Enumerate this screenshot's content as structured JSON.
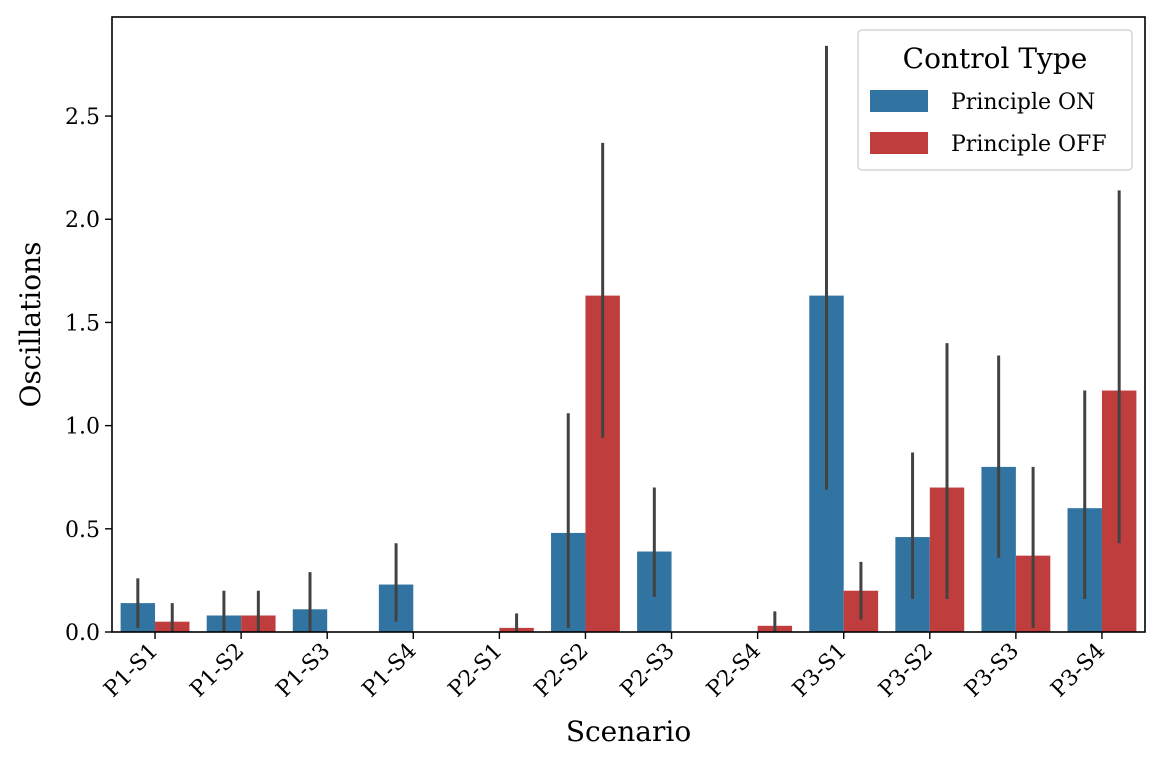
{
  "chart_data": {
    "type": "bar",
    "title": "",
    "xlabel": "Scenario",
    "ylabel": "Oscillations",
    "ylim": [
      0,
      2.98
    ],
    "yticks": [
      0.0,
      0.5,
      1.0,
      1.5,
      2.0,
      2.5
    ],
    "ytick_labels": [
      "0.0",
      "0.5",
      "1.0",
      "1.5",
      "2.0",
      "2.5"
    ],
    "categories": [
      "P1-S1",
      "P1-S2",
      "P1-S3",
      "P1-S4",
      "P2-S1",
      "P2-S2",
      "P2-S3",
      "P2-S4",
      "P3-S1",
      "P3-S2",
      "P3-S3",
      "P3-S4"
    ],
    "legend": {
      "title": "Control Type",
      "position": "top-right"
    },
    "series": [
      {
        "name": "Principle ON",
        "color": "#3274a1",
        "values": [
          0.14,
          0.08,
          0.11,
          0.23,
          0.0,
          0.48,
          0.39,
          0.0,
          1.63,
          0.46,
          0.8,
          0.6
        ],
        "err_low": [
          0.02,
          0.0,
          0.0,
          0.05,
          0.0,
          0.02,
          0.17,
          0.0,
          0.69,
          0.16,
          0.36,
          0.16
        ],
        "err_high": [
          0.26,
          0.2,
          0.29,
          0.43,
          0.0,
          1.06,
          0.7,
          0.0,
          2.84,
          0.87,
          1.34,
          1.17
        ]
      },
      {
        "name": "Principle OFF",
        "color": "#c03d3e",
        "values": [
          0.05,
          0.08,
          0.0,
          0.0,
          0.02,
          1.63,
          0.0,
          0.03,
          0.2,
          0.7,
          0.37,
          1.17
        ],
        "err_low": [
          0.0,
          0.0,
          0.0,
          0.0,
          0.0,
          0.94,
          0.0,
          0.0,
          0.06,
          0.16,
          0.02,
          0.43
        ],
        "err_high": [
          0.14,
          0.2,
          0.0,
          0.0,
          0.09,
          2.37,
          0.0,
          0.1,
          0.34,
          1.4,
          0.8,
          2.14
        ]
      }
    ]
  }
}
